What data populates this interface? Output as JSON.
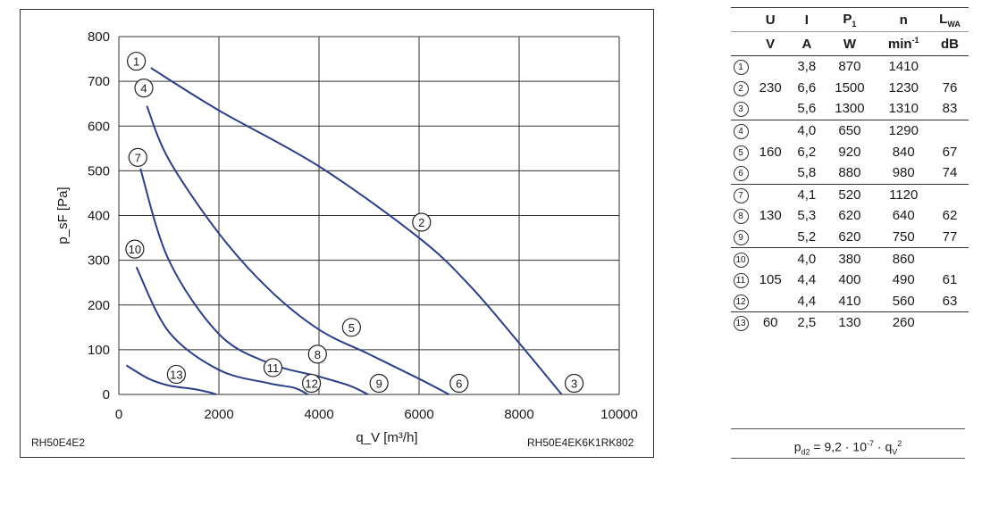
{
  "chart_data": {
    "type": "line",
    "xlabel": "q_V [m³/h]",
    "ylabel": "p_sF [Pa]",
    "xlim": [
      0,
      10000
    ],
    "ylim": [
      0,
      800
    ],
    "x_ticks": [
      "0",
      "2000",
      "4000",
      "6000",
      "8000",
      "10000"
    ],
    "y_ticks": [
      "0",
      "100",
      "200",
      "300",
      "400",
      "500",
      "600",
      "700",
      "800"
    ],
    "grid": true,
    "curves": [
      {
        "id": "1-2-3",
        "x": [
          640,
          2000,
          4000,
          6000,
          7000,
          8000,
          8850
        ],
        "y": [
          730,
          635,
          510,
          350,
          245,
          115,
          0
        ]
      },
      {
        "id": "4-5-6",
        "x": [
          560,
          1000,
          2000,
          3000,
          4000,
          5000,
          6000,
          6600
        ],
        "y": [
          645,
          525,
          360,
          235,
          145,
          90,
          35,
          0
        ]
      },
      {
        "id": "7-8-9",
        "x": [
          430,
          1000,
          2000,
          3000,
          4000,
          4600,
          4980
        ],
        "y": [
          505,
          300,
          135,
          70,
          40,
          20,
          0
        ]
      },
      {
        "id": "10-11-12",
        "x": [
          350,
          1000,
          2000,
          3000,
          3500,
          3780
        ],
        "y": [
          285,
          140,
          55,
          25,
          15,
          0
        ]
      },
      {
        "id": "13",
        "x": [
          150,
          600,
          1000,
          1500,
          1800,
          1950
        ],
        "y": [
          65,
          35,
          20,
          12,
          5,
          0
        ]
      }
    ],
    "point_labels": [
      {
        "label": "1",
        "x": 350,
        "y": 745
      },
      {
        "label": "2",
        "x": 6050,
        "y": 385
      },
      {
        "label": "3",
        "x": 9100,
        "y": 25
      },
      {
        "label": "4",
        "x": 500,
        "y": 685
      },
      {
        "label": "5",
        "x": 4650,
        "y": 150
      },
      {
        "label": "6",
        "x": 6800,
        "y": 25
      },
      {
        "label": "7",
        "x": 380,
        "y": 530
      },
      {
        "label": "8",
        "x": 3970,
        "y": 90
      },
      {
        "label": "9",
        "x": 5200,
        "y": 25
      },
      {
        "label": "10",
        "x": 320,
        "y": 325
      },
      {
        "label": "11",
        "x": 3080,
        "y": 60
      },
      {
        "label": "12",
        "x": 3850,
        "y": 25
      },
      {
        "label": "13",
        "x": 1150,
        "y": 45
      }
    ]
  },
  "models": {
    "left": "RH50E4E2",
    "right": "RH50E4EK6K1RK802"
  },
  "table": {
    "header_top": [
      "U",
      "I",
      "P1",
      "n",
      "LWA"
    ],
    "header_units": [
      "V",
      "A",
      "W",
      "min-1",
      "dB"
    ],
    "groups": [
      {
        "voltage": "230",
        "rows": [
          {
            "id": "1",
            "I": "3,8",
            "P": "870",
            "n": "1410",
            "L": ""
          },
          {
            "id": "2",
            "I": "6,6",
            "P": "1500",
            "n": "1230",
            "L": "76"
          },
          {
            "id": "3",
            "I": "5,6",
            "P": "1300",
            "n": "1310",
            "L": "83"
          }
        ]
      },
      {
        "voltage": "160",
        "rows": [
          {
            "id": "4",
            "I": "4,0",
            "P": "650",
            "n": "1290",
            "L": ""
          },
          {
            "id": "5",
            "I": "6,2",
            "P": "920",
            "n": "840",
            "L": "67"
          },
          {
            "id": "6",
            "I": "5,8",
            "P": "880",
            "n": "980",
            "L": "74"
          }
        ]
      },
      {
        "voltage": "130",
        "rows": [
          {
            "id": "7",
            "I": "4,1",
            "P": "520",
            "n": "1120",
            "L": ""
          },
          {
            "id": "8",
            "I": "5,3",
            "P": "620",
            "n": "640",
            "L": "62"
          },
          {
            "id": "9",
            "I": "5,2",
            "P": "620",
            "n": "750",
            "L": "77"
          }
        ]
      },
      {
        "voltage": "105",
        "rows": [
          {
            "id": "10",
            "I": "4,0",
            "P": "380",
            "n": "860",
            "L": ""
          },
          {
            "id": "11",
            "I": "4,4",
            "P": "400",
            "n": "490",
            "L": "61"
          },
          {
            "id": "12",
            "I": "4,4",
            "P": "410",
            "n": "560",
            "L": "63"
          }
        ]
      },
      {
        "voltage": "60",
        "rows": [
          {
            "id": "13",
            "I": "2,5",
            "P": "130",
            "n": "260",
            "L": ""
          }
        ]
      }
    ]
  },
  "formula": {
    "lhs": "p",
    "lhs_sub": "d2",
    "eq": " = 9,2 · 10",
    "exp": "-7",
    "mid": " · q",
    "q_sub": "V",
    "q_exp": "2"
  },
  "colors": {
    "curve": "#2b3f87",
    "grid": "#333333"
  }
}
